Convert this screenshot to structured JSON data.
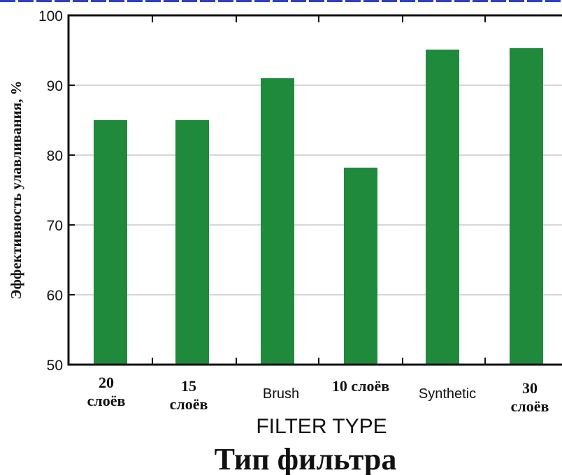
{
  "chart_data": {
    "type": "bar",
    "categories": [
      [
        "20",
        "слоёв"
      ],
      [
        "15",
        "слоёв"
      ],
      [
        "Brush"
      ],
      [
        "10 слоёв"
      ],
      [
        "Synthetic"
      ],
      [
        "30",
        "слоёв"
      ]
    ],
    "values": [
      85,
      85,
      91,
      78.2,
      95.1,
      95.3
    ],
    "ylabel": "Эффективность улавливания, %",
    "xlabel": "FILTER TYPE",
    "xlabel_translation": "Тип фильтра",
    "ylim": [
      50,
      100
    ],
    "yticks": [
      50,
      60,
      70,
      80,
      90,
      100
    ],
    "grid": true,
    "colors": {
      "bar": "#1f8a3c",
      "axis": "#111111",
      "grid": "#c8c8c8"
    }
  }
}
